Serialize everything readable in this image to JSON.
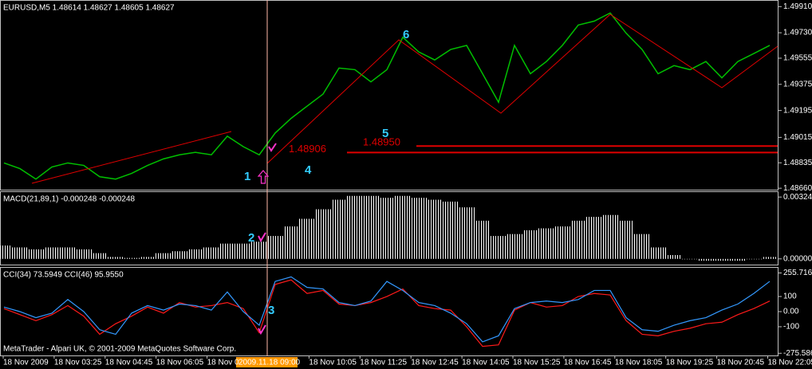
{
  "chart_data": [
    {
      "type": "line",
      "title": "EURUSD,M5  1.48614 1.48627 1.48605 1.48627",
      "color": "#00c000",
      "values": [
        1.48834,
        1.48795,
        1.48723,
        1.48806,
        1.48834,
        1.48817,
        1.48739,
        1.48723,
        1.48762,
        1.48817,
        1.48862,
        1.4889,
        1.48907,
        1.4889,
        1.49018,
        1.48946,
        1.4889,
        1.4904,
        1.49141,
        1.49225,
        1.49308,
        1.49487,
        1.49476,
        1.49392,
        1.49476,
        1.49699,
        1.49598,
        1.49543,
        1.49615,
        1.49643,
        1.49448,
        1.49252,
        1.49643,
        1.49448,
        1.49532,
        1.49643,
        1.49783,
        1.4981,
        1.49866,
        1.49727,
        1.49615,
        1.49448,
        1.49504,
        1.49476,
        1.49532,
        1.4942,
        1.49532,
        1.49587,
        1.49643
      ],
      "ylim": [
        1.4865,
        1.4995
      ],
      "yticks": [
        {
          "value": 1.4991,
          "label": "1.49910"
        },
        {
          "value": 1.4973,
          "label": "1.49730"
        },
        1.49555,
        1.49375,
        1.49195,
        {
          "value": 1.4901,
          "label": "1.49015"
        },
        1.48835,
        {
          "value": 1.4866,
          "label": "1.48660"
        }
      ],
      "levels": [
        {
          "value": 1.48906,
          "label": "1.48906"
        },
        {
          "value": 1.4895,
          "label": "1.48950"
        }
      ],
      "level_color": "#e00000"
    },
    {
      "type": "bar",
      "title": "MACD(21,89,1) -0.000248 -0.000248",
      "color": "#ffffff",
      "values": [
        0.0007,
        0.0006,
        0.0005,
        0.0006,
        0.0006,
        0.0005,
        0.0003,
        0.0001,
        5e-05,
        0.0001,
        0.0003,
        0.0004,
        0.0005,
        0.0006,
        0.0008,
        0.0008,
        0.0009,
        0.0012,
        0.0017,
        0.0021,
        0.0026,
        0.0031,
        0.0033,
        0.0033,
        0.0032,
        0.0033,
        0.0032,
        0.0031,
        0.003,
        0.0027,
        0.002,
        0.0012,
        0.0013,
        0.0015,
        0.0016,
        0.0017,
        0.002,
        0.0022,
        0.0023,
        0.002,
        0.0013,
        0.0006,
        0.0002,
        0,
        -0.0001,
        -0.0001,
        -0.0001,
        0,
        0.0001
      ],
      "ylim": [
        -0.0003,
        0.0035
      ],
      "yticks": [
        {
          "value": 0.00324,
          "label": "0.00324"
        },
        {
          "value": 0,
          "label": "0.00000"
        }
      ]
    },
    {
      "type": "line",
      "title": "CCI(34) 73.5949  CCI(46) 95.9550",
      "series": [
        {
          "color": "#ff1a1a",
          "values": [
            20,
            -20,
            -60,
            -20,
            40,
            -30,
            -150,
            -80,
            -30,
            30,
            -10,
            60,
            30,
            40,
            60,
            20,
            -140,
            180,
            210,
            120,
            140,
            50,
            40,
            60,
            100,
            150,
            40,
            20,
            10,
            -100,
            -230,
            -220,
            10,
            60,
            30,
            40,
            100,
            120,
            110,
            -60,
            -150,
            -160,
            -130,
            -110,
            -80,
            -70,
            -20,
            20,
            70
          ]
        },
        {
          "color": "#3399ff",
          "values": [
            30,
            0,
            -40,
            -10,
            80,
            0,
            -120,
            -150,
            -10,
            40,
            10,
            50,
            40,
            10,
            130,
            0,
            -90,
            200,
            230,
            160,
            150,
            60,
            40,
            70,
            200,
            140,
            60,
            40,
            -10,
            -80,
            -200,
            -160,
            20,
            60,
            70,
            60,
            80,
            140,
            140,
            -40,
            -120,
            -130,
            -90,
            -60,
            -40,
            10,
            50,
            120,
            200
          ]
        }
      ],
      "ylim": [
        -290,
        290
      ],
      "yticks": [
        255.716,
        100,
        {
          "value": 0,
          "label": "0.00"
        },
        -100,
        -275.586
      ]
    }
  ],
  "x_labels": [
    "18 Nov 2009",
    "18 Nov 03:25",
    "18 Nov 04:45",
    "18 Nov 06:05",
    "18 Nov 0",
    null,
    "18 Nov 10:05",
    "18 Nov 11:25",
    "18 Nov 12:45",
    "18 Nov 14:05",
    "18 Nov 15:25",
    "18 Nov 16:45",
    "18 Nov 18:05",
    "18 Nov 19:25",
    "18 Nov 20:45",
    "18 Nov 22:05"
  ],
  "cursor_time": "2009.11.18 09:00",
  "copyright": "MetaTrader - Alpari UK, © 2001-2009 MetaQuotes Software Corp.",
  "markers": [
    "1",
    "2",
    "3",
    "4",
    "5",
    "6"
  ]
}
